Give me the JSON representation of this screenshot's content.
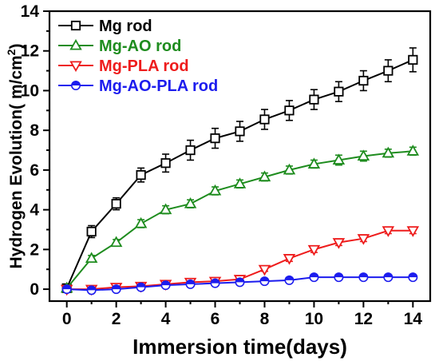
{
  "chart_data": {
    "type": "line",
    "xlabel": "Immersion time(days)",
    "ylabel_main": "Hydrogen Evolution( m/cm",
    "ylabel_sup": "2",
    "ylabel_close": ")",
    "xlim": [
      -0.7,
      14.7
    ],
    "ylim": [
      -0.6,
      14
    ],
    "xticks": [
      0,
      2,
      4,
      6,
      8,
      10,
      12,
      14
    ],
    "yticks": [
      0,
      2,
      4,
      6,
      8,
      10,
      12,
      14
    ],
    "legend_position": "top-left",
    "x": [
      0,
      1,
      2,
      3,
      4,
      5,
      6,
      7,
      8,
      9,
      10,
      11,
      12,
      13,
      14
    ],
    "series": [
      {
        "name": "Mg rod",
        "color": "#000000",
        "marker": "square-open",
        "values": [
          0.05,
          2.9,
          4.3,
          5.75,
          6.35,
          7.0,
          7.6,
          7.95,
          8.55,
          9.0,
          9.55,
          9.95,
          10.5,
          11.0,
          11.55
        ],
        "errors": [
          0.1,
          0.3,
          0.3,
          0.35,
          0.45,
          0.5,
          0.5,
          0.5,
          0.5,
          0.5,
          0.5,
          0.5,
          0.5,
          0.55,
          0.6
        ]
      },
      {
        "name": "Mg-AO rod",
        "color": "#1e8c1e",
        "marker": "triangle-up-open",
        "values": [
          0.05,
          1.55,
          2.35,
          3.3,
          4.0,
          4.3,
          4.95,
          5.3,
          5.65,
          6.0,
          6.3,
          6.5,
          6.7,
          6.85,
          6.95
        ],
        "errors": [
          0.05,
          0.15,
          0.15,
          0.2,
          0.2,
          0.2,
          0.2,
          0.2,
          0.2,
          0.2,
          0.2,
          0.25,
          0.25,
          0.2,
          0.2
        ]
      },
      {
        "name": "Mg-PLA rod",
        "color": "#ee1c1c",
        "marker": "triangle-down-open",
        "values": [
          0.0,
          0.0,
          0.1,
          0.15,
          0.25,
          0.35,
          0.4,
          0.5,
          1.0,
          1.55,
          2.0,
          2.35,
          2.55,
          2.95,
          2.95
        ],
        "errors": [
          0.05,
          0.05,
          0.05,
          0.05,
          0.05,
          0.05,
          0.05,
          0.05,
          0.1,
          0.15,
          0.15,
          0.15,
          0.15,
          0.15,
          0.15
        ]
      },
      {
        "name": "Mg-AO-PLA rod",
        "color": "#1c1cee",
        "marker": "circle-half",
        "values": [
          0.0,
          -0.05,
          0.0,
          0.1,
          0.2,
          0.25,
          0.3,
          0.35,
          0.4,
          0.45,
          0.6,
          0.6,
          0.6,
          0.6,
          0.6
        ],
        "errors": [
          0.05,
          0.05,
          0.05,
          0.05,
          0.05,
          0.05,
          0.05,
          0.05,
          0.05,
          0.05,
          0.1,
          0.1,
          0.1,
          0.1,
          0.1
        ]
      }
    ]
  }
}
